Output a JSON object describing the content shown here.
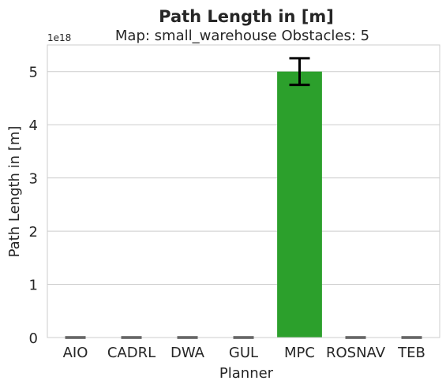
{
  "chart_data": {
    "type": "bar",
    "title": "Path Length in [m]",
    "subtitle": "Map: small_warehouse Obstacles: 5",
    "xlabel": "Planner",
    "ylabel": "Path Length in [m]",
    "offset_label": "1e18",
    "categories": [
      "AIO",
      "CADRL",
      "DWA",
      "GUL",
      "MPC",
      "ROSNAV",
      "TEB"
    ],
    "values": [
      0,
      0,
      0,
      0,
      5.0,
      0,
      0
    ],
    "error": [
      0,
      0,
      0,
      0,
      0.25,
      0,
      0
    ],
    "ylim": [
      0,
      5.5
    ],
    "yticks": [
      "0",
      "1",
      "2",
      "3",
      "4",
      "5"
    ],
    "grid": true,
    "colors": {
      "bar": "#2ca02c",
      "error": "#000000",
      "grid": "#cccccc",
      "spine": "#cccccc"
    }
  }
}
